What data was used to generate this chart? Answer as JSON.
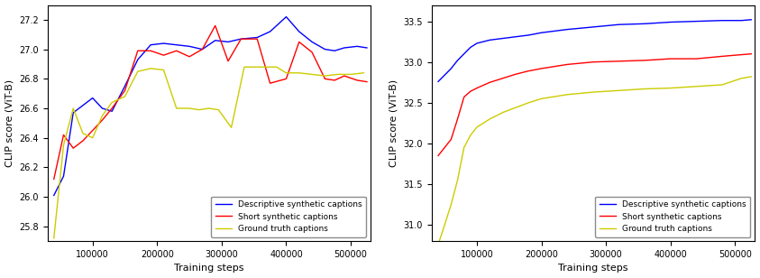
{
  "left": {
    "ylabel": "CLIP score (ViT-B)",
    "xlabel": "Training steps",
    "ylim": [
      25.7,
      27.3
    ],
    "xlim": [
      30000,
      530000
    ],
    "yticks": [
      25.8,
      26.0,
      26.2,
      26.4,
      26.6,
      26.8,
      27.0,
      27.2
    ],
    "blue": {
      "label": "Descriptive synthetic captions",
      "x": [
        40000,
        55000,
        70000,
        85000,
        100000,
        115000,
        130000,
        150000,
        170000,
        190000,
        210000,
        230000,
        250000,
        270000,
        290000,
        310000,
        330000,
        355000,
        375000,
        400000,
        420000,
        440000,
        460000,
        475000,
        490000,
        510000,
        525000
      ],
      "y": [
        26.01,
        26.14,
        26.57,
        26.62,
        26.67,
        26.6,
        26.58,
        26.75,
        26.93,
        27.03,
        27.04,
        27.03,
        27.02,
        27.0,
        27.06,
        27.05,
        27.07,
        27.08,
        27.12,
        27.22,
        27.12,
        27.05,
        27.0,
        26.99,
        27.01,
        27.02,
        27.01
      ]
    },
    "red": {
      "label": "Short synthetic captions",
      "x": [
        40000,
        55000,
        70000,
        85000,
        100000,
        115000,
        130000,
        150000,
        170000,
        190000,
        210000,
        230000,
        250000,
        270000,
        290000,
        310000,
        330000,
        355000,
        375000,
        400000,
        420000,
        440000,
        460000,
        475000,
        490000,
        510000,
        525000
      ],
      "y": [
        26.12,
        26.42,
        26.33,
        26.38,
        26.45,
        26.52,
        26.6,
        26.72,
        26.99,
        26.99,
        26.96,
        26.99,
        26.95,
        27.0,
        27.16,
        26.92,
        27.07,
        27.07,
        26.77,
        26.8,
        27.05,
        26.98,
        26.8,
        26.79,
        26.82,
        26.79,
        26.78
      ]
    },
    "yellow": {
      "label": "Ground truth captions",
      "x": [
        40000,
        55000,
        70000,
        85000,
        100000,
        115000,
        130000,
        150000,
        170000,
        190000,
        210000,
        230000,
        250000,
        265000,
        280000,
        295000,
        315000,
        335000,
        360000,
        385000,
        400000,
        420000,
        440000,
        460000,
        480000,
        500000,
        520000
      ],
      "y": [
        25.72,
        26.35,
        26.6,
        26.43,
        26.4,
        26.55,
        26.64,
        26.68,
        26.85,
        26.87,
        26.86,
        26.6,
        26.6,
        26.59,
        26.6,
        26.59,
        26.47,
        26.88,
        26.88,
        26.88,
        26.84,
        26.84,
        26.83,
        26.82,
        26.83,
        26.83,
        26.84
      ]
    }
  },
  "right": {
    "ylabel": "CLIP score (ViT-B)",
    "xlabel": "Training steps",
    "ylim": [
      30.8,
      33.7
    ],
    "xlim": [
      30000,
      530000
    ],
    "yticks": [
      31.0,
      31.5,
      32.0,
      32.5,
      33.0,
      33.5
    ],
    "blue": {
      "label": "Descriptive synthetic captions",
      "x": [
        40000,
        50000,
        60000,
        70000,
        80000,
        90000,
        100000,
        120000,
        140000,
        160000,
        180000,
        200000,
        240000,
        280000,
        320000,
        360000,
        400000,
        440000,
        480000,
        510000,
        525000
      ],
      "y": [
        32.76,
        32.84,
        32.92,
        33.02,
        33.1,
        33.18,
        33.23,
        33.27,
        33.29,
        33.31,
        33.33,
        33.36,
        33.4,
        33.43,
        33.46,
        33.47,
        33.49,
        33.5,
        33.51,
        33.51,
        33.52
      ]
    },
    "red": {
      "label": "Short synthetic captions",
      "x": [
        40000,
        50000,
        60000,
        70000,
        80000,
        90000,
        100000,
        120000,
        140000,
        160000,
        180000,
        200000,
        240000,
        280000,
        320000,
        360000,
        400000,
        440000,
        480000,
        510000,
        525000
      ],
      "y": [
        31.85,
        31.95,
        32.05,
        32.3,
        32.57,
        32.64,
        32.68,
        32.75,
        32.8,
        32.85,
        32.89,
        32.92,
        32.97,
        33.0,
        33.01,
        33.02,
        33.04,
        33.04,
        33.07,
        33.09,
        33.1
      ]
    },
    "yellow": {
      "label": "Ground truth captions",
      "x": [
        40000,
        50000,
        60000,
        70000,
        80000,
        90000,
        100000,
        120000,
        140000,
        160000,
        180000,
        200000,
        240000,
        280000,
        320000,
        360000,
        400000,
        440000,
        480000,
        510000,
        525000
      ],
      "y": [
        30.76,
        31.0,
        31.25,
        31.55,
        31.95,
        32.1,
        32.2,
        32.3,
        32.38,
        32.44,
        32.5,
        32.55,
        32.6,
        32.63,
        32.65,
        32.67,
        32.68,
        32.7,
        32.72,
        32.8,
        32.82
      ]
    }
  },
  "colors": {
    "blue": "#0000ff",
    "red": "#ff0000",
    "yellow": "#cccc00"
  },
  "linewidth": 1.0,
  "legend_fontsize": 6.5,
  "tick_fontsize": 7,
  "label_fontsize": 8
}
